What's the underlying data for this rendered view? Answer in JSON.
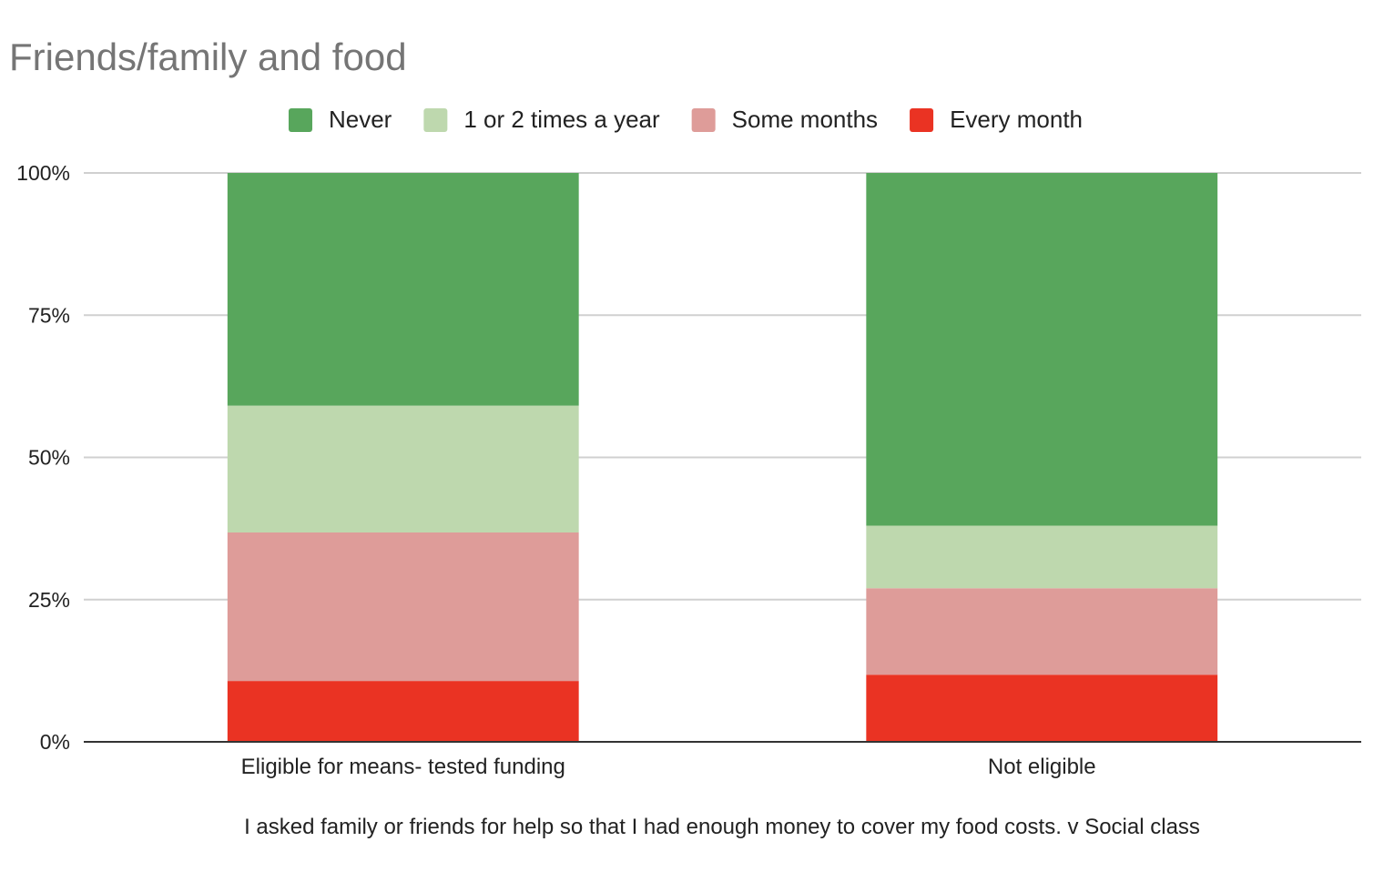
{
  "chart_data": {
    "type": "bar",
    "stacked": true,
    "percent_stacked": true,
    "title": "Friends/family and food",
    "xlabel": "I asked family or friends for help so that I had enough money to cover my food costs. v Social class",
    "ylabel": "",
    "categories": [
      "Eligible for means- tested funding",
      "Not eligible"
    ],
    "series": [
      {
        "name": "Every month",
        "color": "#ea3323",
        "values": [
          10.7,
          11.8
        ]
      },
      {
        "name": "Some months",
        "color": "#de9c99",
        "values": [
          26.1,
          15.2
        ]
      },
      {
        "name": "1 or 2 times a year",
        "color": "#bed8ae",
        "values": [
          22.3,
          11.0
        ]
      },
      {
        "name": "Never",
        "color": "#58a65c",
        "values": [
          40.9,
          62.0
        ]
      }
    ],
    "legend_order": [
      "Never",
      "1 or 2 times a year",
      "Some months",
      "Every month"
    ],
    "legend_position": "top",
    "ylim": [
      0,
      100
    ],
    "yticks": [
      "0%",
      "25%",
      "50%",
      "75%",
      "100%"
    ],
    "grid": true
  }
}
